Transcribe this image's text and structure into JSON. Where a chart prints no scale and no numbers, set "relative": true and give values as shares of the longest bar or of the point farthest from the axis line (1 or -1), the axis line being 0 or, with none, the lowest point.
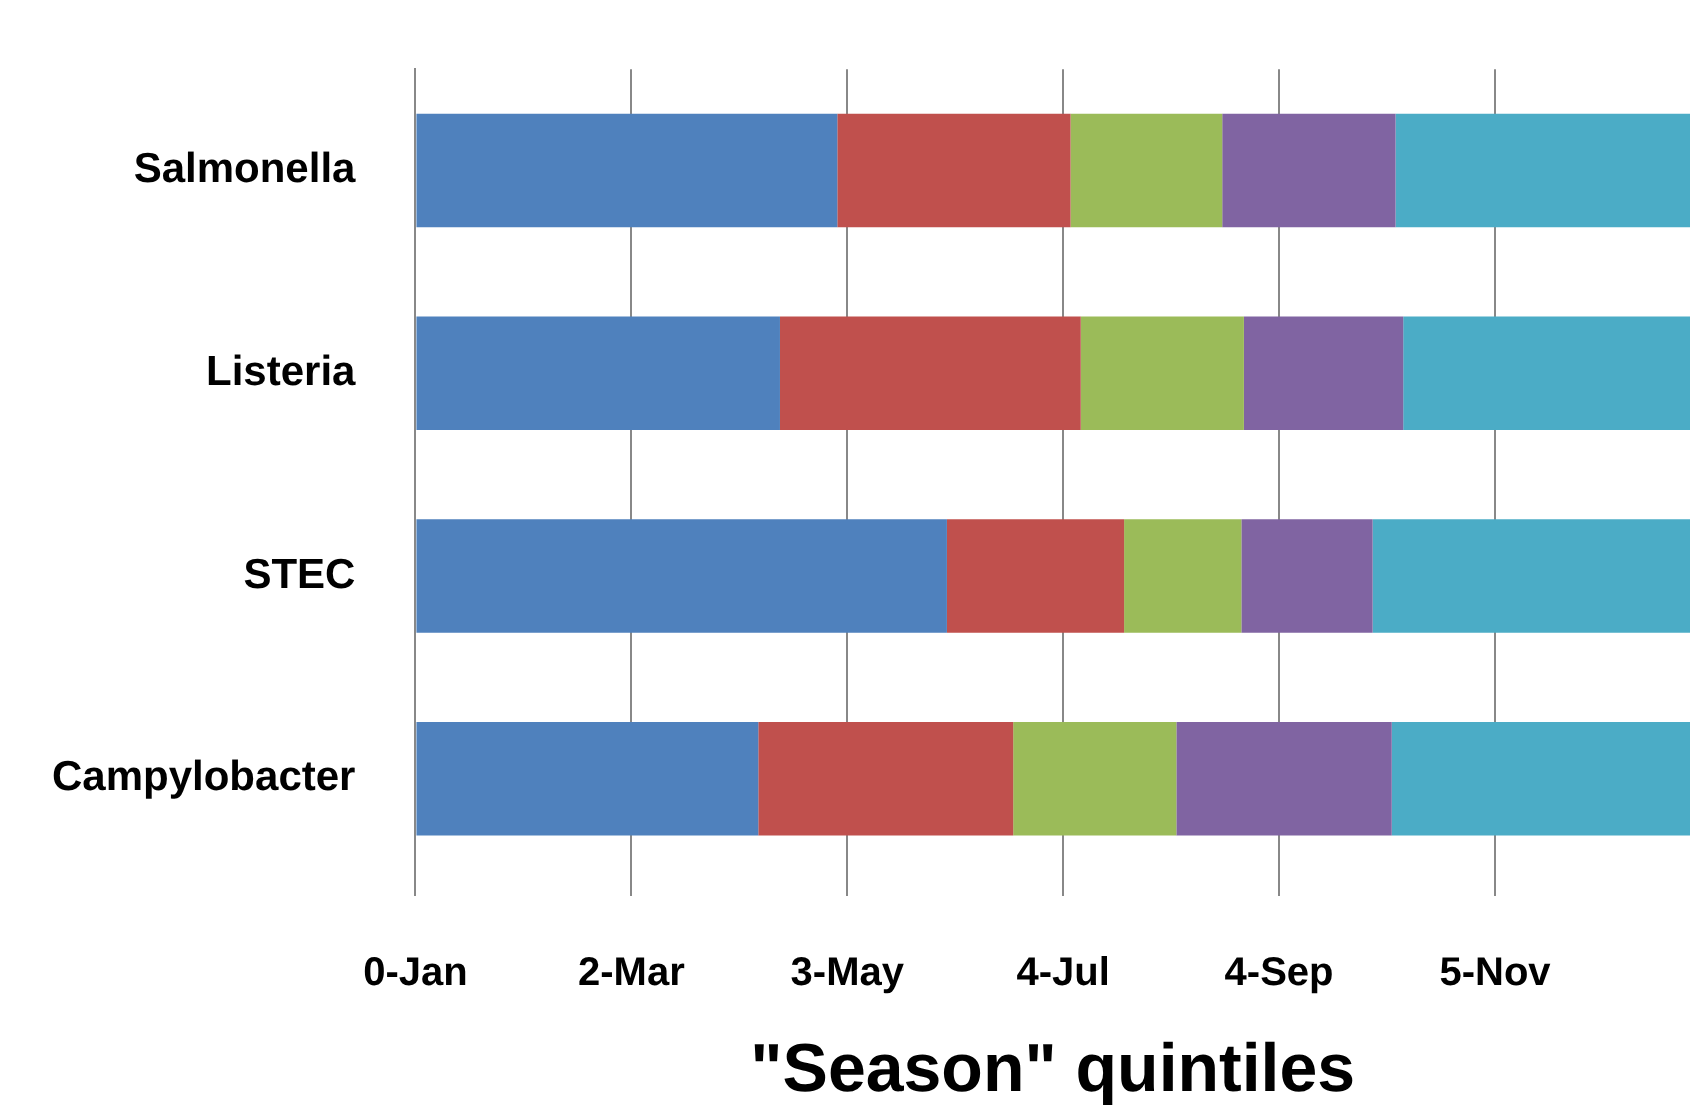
{
  "chart_data": {
    "type": "bar",
    "orientation": "horizontal",
    "stacked": true,
    "relative": true,
    "xlabel": "\"Season\" quintiles",
    "categories": [
      "Salmonella",
      "Listeria",
      "STEC",
      "Campylobacter"
    ],
    "series": [
      {
        "color": "#4f81bd",
        "values": [
          0.331,
          0.286,
          0.417,
          0.269
        ]
      },
      {
        "color": "#c0504d",
        "values": [
          0.183,
          0.236,
          0.139,
          0.2
        ]
      },
      {
        "color": "#9bbb59",
        "values": [
          0.119,
          0.128,
          0.092,
          0.128
        ]
      },
      {
        "color": "#8064a2",
        "values": [
          0.136,
          0.125,
          0.103,
          0.169
        ]
      },
      {
        "color": "#4bacc6",
        "values": [
          0.231,
          0.225,
          0.249,
          0.234
        ]
      }
    ],
    "annotations": [
      "0-Jan",
      "2-Mar",
      "3-May",
      "4-Jul",
      "4-Sep",
      "5-Nov"
    ],
    "grid": "x",
    "legend": false
  }
}
